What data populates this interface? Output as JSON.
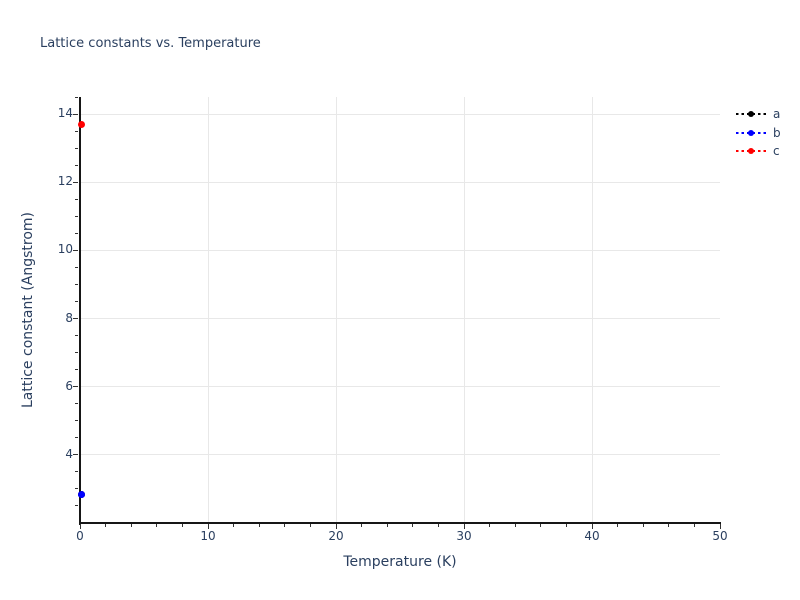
{
  "chart_data": {
    "type": "scatter",
    "title": "Lattice constants vs. Temperature",
    "xlabel": "Temperature (K)",
    "ylabel": "Lattice constant (Angstrom)",
    "xlim": [
      0,
      50
    ],
    "ylim": [
      2.0,
      14.5
    ],
    "x_ticks": [
      0,
      10,
      20,
      30,
      40,
      50
    ],
    "x_minor_tick_step": 2,
    "y_ticks": [
      4,
      6,
      8,
      10,
      12,
      14
    ],
    "y_minor_tick_step": 0.5,
    "grid_h_values": [
      4,
      6,
      8,
      10,
      12,
      14
    ],
    "grid_v_values": [
      10,
      20,
      30,
      40
    ],
    "legend": {
      "position": "top-right-outside",
      "entries": [
        "a",
        "b",
        "c"
      ]
    },
    "series": [
      {
        "name": "a",
        "color": "#000000",
        "mode": "dashed-line+markers",
        "x": [
          0
        ],
        "y": [
          2.85
        ]
      },
      {
        "name": "b",
        "color": "#0000ff",
        "mode": "dashed-line+markers",
        "x": [
          0
        ],
        "y": [
          2.85
        ]
      },
      {
        "name": "c",
        "color": "#ff0000",
        "mode": "dashed-line+markers",
        "x": [
          0
        ],
        "y": [
          13.7
        ]
      }
    ],
    "colors": {
      "text": "#2a3f5f",
      "grid": "#e8e8e8",
      "axis_line": "#161616",
      "background": "#ffffff"
    }
  }
}
